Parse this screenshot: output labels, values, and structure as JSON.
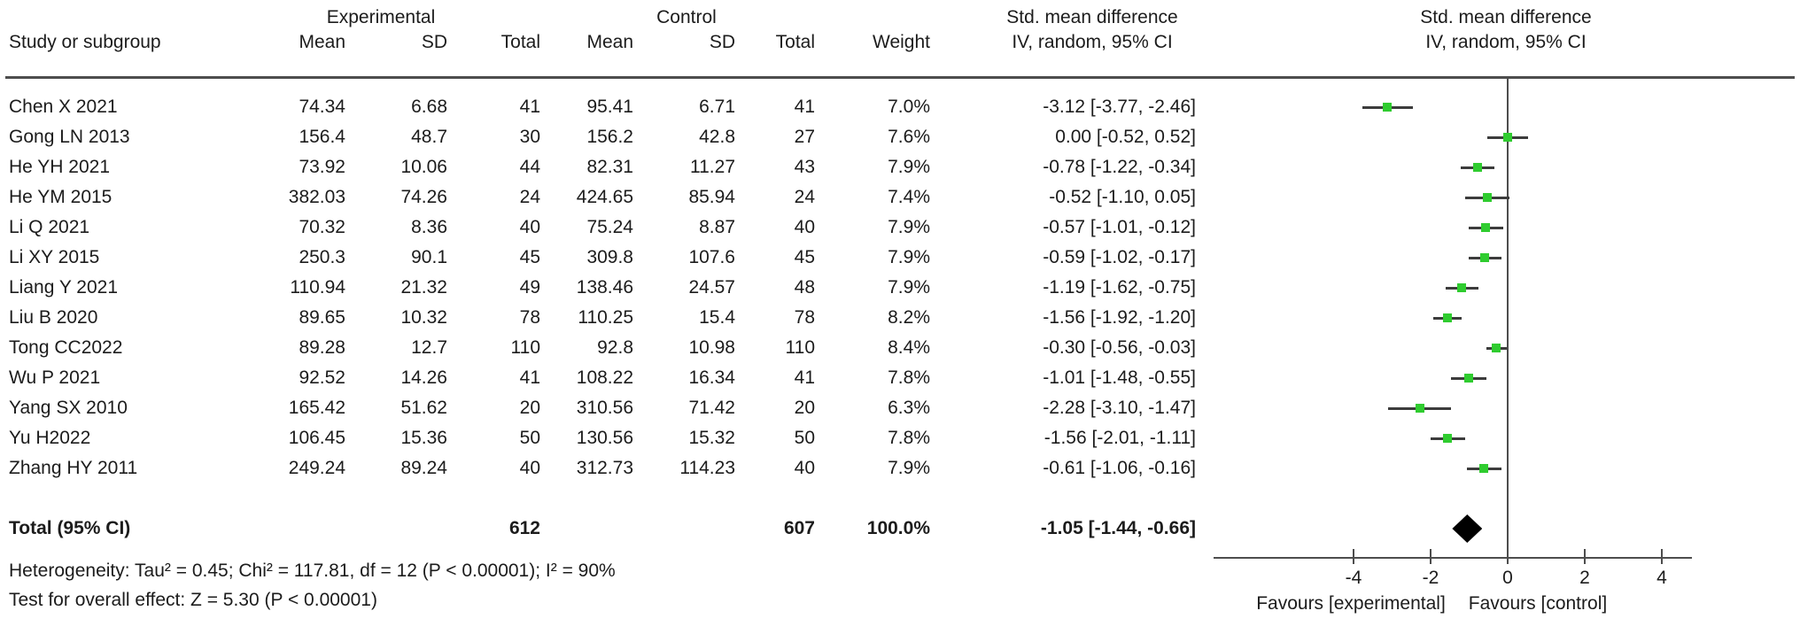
{
  "chart_data": {
    "type": "forest",
    "title_columns": {
      "group_experimental": "Experimental",
      "group_control": "Control",
      "smd_header_line1": "Std. mean difference",
      "smd_header_line2": "IV, random, 95% CI",
      "plot_header_line1": "Std. mean difference",
      "plot_header_line2": "IV, random, 95% CI"
    },
    "column_headers": {
      "study": "Study or subgroup",
      "exp_mean": "Mean",
      "exp_sd": "SD",
      "exp_total": "Total",
      "ctrl_mean": "Mean",
      "ctrl_sd": "SD",
      "ctrl_total": "Total",
      "weight": "Weight"
    },
    "studies": [
      {
        "name": "Chen X 2021",
        "e_mean": "74.34",
        "e_sd": "6.68",
        "e_total": "41",
        "c_mean": "95.41",
        "c_sd": "6.71",
        "c_total": "41",
        "weight": "7.0%",
        "ci_text": "-3.12 [-3.77, -2.46]",
        "smd": -3.12,
        "lo": -3.77,
        "hi": -2.46
      },
      {
        "name": "Gong LN 2013",
        "e_mean": "156.4",
        "e_sd": "48.7",
        "e_total": "30",
        "c_mean": "156.2",
        "c_sd": "42.8",
        "c_total": "27",
        "weight": "7.6%",
        "ci_text": "0.00 [-0.52, 0.52]",
        "smd": 0.0,
        "lo": -0.52,
        "hi": 0.52
      },
      {
        "name": "He YH 2021",
        "e_mean": "73.92",
        "e_sd": "10.06",
        "e_total": "44",
        "c_mean": "82.31",
        "c_sd": "11.27",
        "c_total": "43",
        "weight": "7.9%",
        "ci_text": "-0.78 [-1.22, -0.34]",
        "smd": -0.78,
        "lo": -1.22,
        "hi": -0.34
      },
      {
        "name": "He YM 2015",
        "e_mean": "382.03",
        "e_sd": "74.26",
        "e_total": "24",
        "c_mean": "424.65",
        "c_sd": "85.94",
        "c_total": "24",
        "weight": "7.4%",
        "ci_text": "-0.52 [-1.10, 0.05]",
        "smd": -0.52,
        "lo": -1.1,
        "hi": 0.05
      },
      {
        "name": "Li Q 2021",
        "e_mean": "70.32",
        "e_sd": "8.36",
        "e_total": "40",
        "c_mean": "75.24",
        "c_sd": "8.87",
        "c_total": "40",
        "weight": "7.9%",
        "ci_text": "-0.57 [-1.01, -0.12]",
        "smd": -0.57,
        "lo": -1.01,
        "hi": -0.12
      },
      {
        "name": "Li XY 2015",
        "e_mean": "250.3",
        "e_sd": "90.1",
        "e_total": "45",
        "c_mean": "309.8",
        "c_sd": "107.6",
        "c_total": "45",
        "weight": "7.9%",
        "ci_text": "-0.59 [-1.02, -0.17]",
        "smd": -0.59,
        "lo": -1.02,
        "hi": -0.17
      },
      {
        "name": "Liang Y 2021",
        "e_mean": "110.94",
        "e_sd": "21.32",
        "e_total": "49",
        "c_mean": "138.46",
        "c_sd": "24.57",
        "c_total": "48",
        "weight": "7.9%",
        "ci_text": "-1.19 [-1.62, -0.75]",
        "smd": -1.19,
        "lo": -1.62,
        "hi": -0.75
      },
      {
        "name": "Liu B 2020",
        "e_mean": "89.65",
        "e_sd": "10.32",
        "e_total": "78",
        "c_mean": "110.25",
        "c_sd": "15.4",
        "c_total": "78",
        "weight": "8.2%",
        "ci_text": "-1.56 [-1.92, -1.20]",
        "smd": -1.56,
        "lo": -1.92,
        "hi": -1.2
      },
      {
        "name": "Tong CC2022",
        "e_mean": "89.28",
        "e_sd": "12.7",
        "e_total": "110",
        "c_mean": "92.8",
        "c_sd": "10.98",
        "c_total": "110",
        "weight": "8.4%",
        "ci_text": "-0.30 [-0.56, -0.03]",
        "smd": -0.3,
        "lo": -0.56,
        "hi": -0.03
      },
      {
        "name": "Wu P 2021",
        "e_mean": "92.52",
        "e_sd": "14.26",
        "e_total": "41",
        "c_mean": "108.22",
        "c_sd": "16.34",
        "c_total": "41",
        "weight": "7.8%",
        "ci_text": "-1.01 [-1.48, -0.55]",
        "smd": -1.01,
        "lo": -1.48,
        "hi": -0.55
      },
      {
        "name": "Yang SX 2010",
        "e_mean": "165.42",
        "e_sd": "51.62",
        "e_total": "20",
        "c_mean": "310.56",
        "c_sd": "71.42",
        "c_total": "20",
        "weight": "6.3%",
        "ci_text": "-2.28 [-3.10, -1.47]",
        "smd": -2.28,
        "lo": -3.1,
        "hi": -1.47
      },
      {
        "name": "Yu H2022",
        "e_mean": "106.45",
        "e_sd": "15.36",
        "e_total": "50",
        "c_mean": "130.56",
        "c_sd": "15.32",
        "c_total": "50",
        "weight": "7.8%",
        "ci_text": "-1.56 [-2.01, -1.11]",
        "smd": -1.56,
        "lo": -2.01,
        "hi": -1.11
      },
      {
        "name": "Zhang HY 2011",
        "e_mean": "249.24",
        "e_sd": "89.24",
        "e_total": "40",
        "c_mean": "312.73",
        "c_sd": "114.23",
        "c_total": "40",
        "weight": "7.9%",
        "ci_text": "-0.61 [-1.06, -0.16]",
        "smd": -0.61,
        "lo": -1.06,
        "hi": -0.16
      }
    ],
    "total_row": {
      "label": "Total (95% CI)",
      "e_total": "612",
      "c_total": "607",
      "weight": "100.0%",
      "ci_text": "-1.05 [-1.44, -0.66]",
      "smd": -1.05,
      "lo": -1.44,
      "hi": -0.66
    },
    "footnotes": {
      "heterogeneity": "Heterogeneity: Tau² = 0.45; Chi² = 117.81, df = 12 (P < 0.00001); I² = 90%",
      "overall_effect": "Test for overall effect: Z = 5.30 (P < 0.00001)"
    },
    "axis": {
      "ticks": [
        {
          "label": "-4",
          "value": -4
        },
        {
          "label": "-2",
          "value": -2
        },
        {
          "label": "0",
          "value": 0
        },
        {
          "label": "2",
          "value": 2
        },
        {
          "label": "4",
          "value": 4
        }
      ],
      "xlim_visible": [
        -7.6,
        4.8
      ],
      "favours_left": "Favours [experimental]",
      "favours_right": "Favours [control]"
    },
    "colors": {
      "marker_green": "#2fcc2f",
      "diamond_black": "#000000",
      "ci_line": "#3c3c3c",
      "rule_gray": "#4d4d4d"
    }
  }
}
